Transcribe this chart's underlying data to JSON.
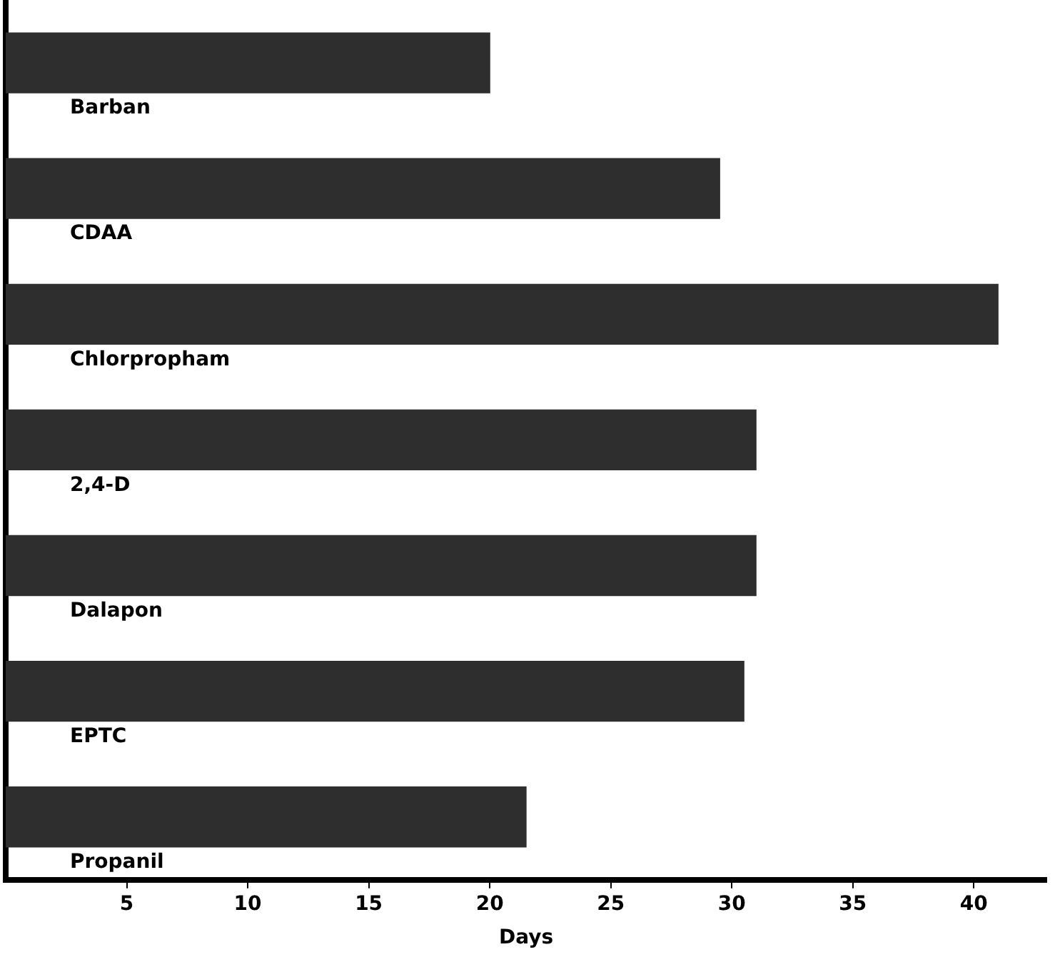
{
  "chart_data": {
    "type": "bar",
    "orientation": "horizontal",
    "xlabel": "Days",
    "categories": [
      "Barban",
      "CDAA",
      "Chlorpropham",
      "2,4-D",
      "Dalapon",
      "EPTC",
      "Propanil"
    ],
    "values": [
      20,
      29.5,
      41,
      31,
      31,
      30.5,
      21.5
    ],
    "color": "#2e2e2e",
    "xlim": [
      0,
      43
    ],
    "xticks": [
      5,
      10,
      15,
      20,
      25,
      30,
      35,
      40
    ],
    "grid": false,
    "legend": false
  }
}
